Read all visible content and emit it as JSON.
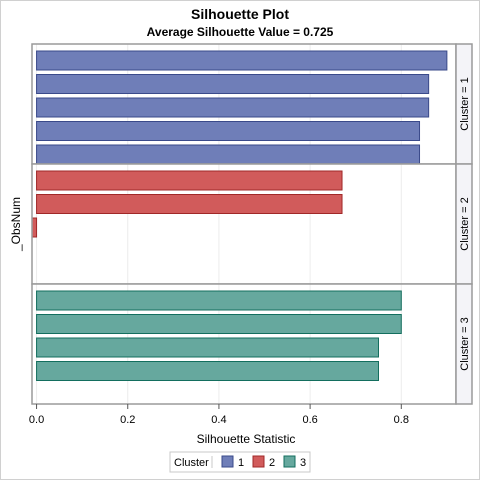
{
  "chart_data": {
    "type": "bar",
    "orientation": "horizontal",
    "title": "Silhouette Plot",
    "subtitle": "Average Silhouette Value = 0.725",
    "xlabel": "Silhouette Statistic",
    "ylabel": "_ObsNum",
    "xlim": [
      -0.01,
      0.92
    ],
    "xticks": [
      "0.0",
      "0.2",
      "0.4",
      "0.6",
      "0.8"
    ],
    "grid": true,
    "legend": {
      "title": "Cluster",
      "position": "bottom",
      "entries": [
        "1",
        "2",
        "3"
      ]
    },
    "panels": [
      {
        "label": "Cluster = 1",
        "cluster": "1",
        "values": [
          0.9,
          0.86,
          0.86,
          0.84,
          0.84
        ]
      },
      {
        "label": "Cluster = 2",
        "cluster": "2",
        "values": [
          0.67,
          0.67,
          -0.01
        ]
      },
      {
        "label": "Cluster = 3",
        "cluster": "3",
        "values": [
          0.8,
          0.8,
          0.75,
          0.75
        ]
      }
    ],
    "colors": {
      "1": {
        "fill": "#6f7eb8",
        "stroke": "#3a4a8a"
      },
      "2": {
        "fill": "#d15b5b",
        "stroke": "#a02828"
      },
      "3": {
        "fill": "#66a89e",
        "stroke": "#136e5e"
      }
    }
  }
}
